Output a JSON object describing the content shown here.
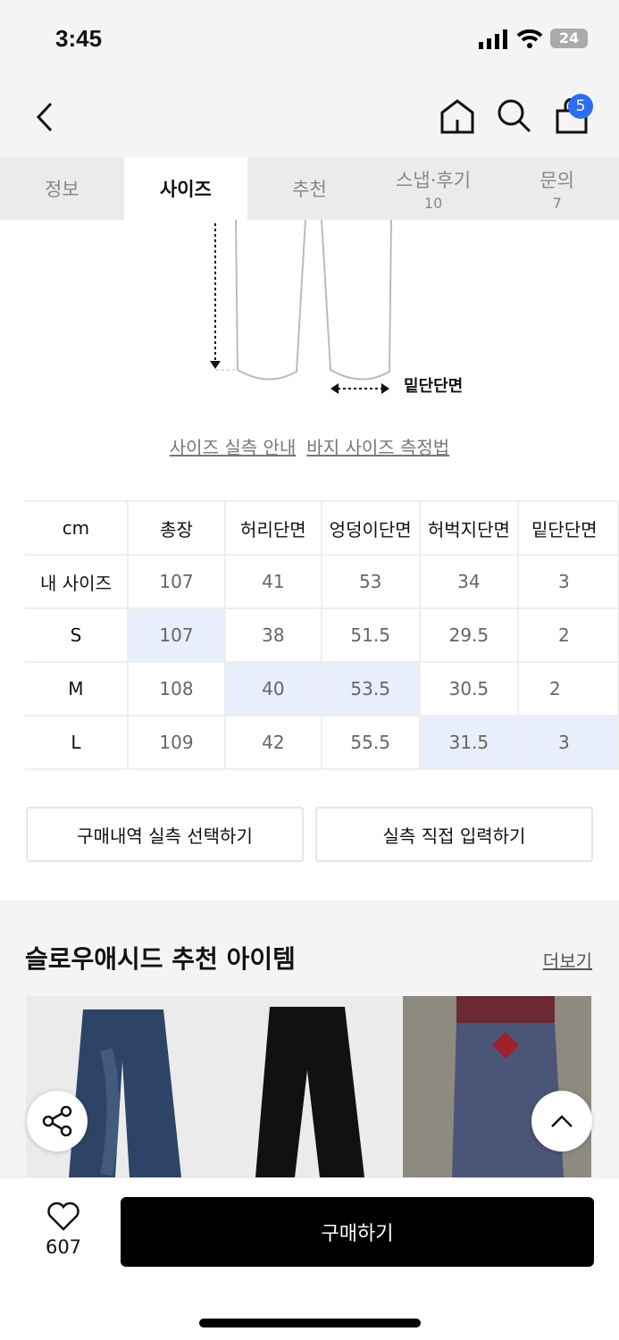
{
  "status": {
    "time": "3:45",
    "battery": "24"
  },
  "nav": {
    "cart_badge": "5",
    "accent": "#2f6cf6"
  },
  "tabs": [
    {
      "label": "정보",
      "count": ""
    },
    {
      "label": "사이즈",
      "count": ""
    },
    {
      "label": "추천",
      "count": ""
    },
    {
      "label": "스냅·후기",
      "count": "10"
    },
    {
      "label": "문의",
      "count": "7"
    }
  ],
  "diagram": {
    "hem_label": "밑단단면"
  },
  "links": {
    "guide": "사이즈 실측 안내",
    "howto": "바지 사이즈 측정법"
  },
  "size_table": {
    "headers": [
      "cm",
      "총장",
      "허리단면",
      "엉덩이단면",
      "허벅지단면",
      "밑단단면"
    ],
    "rows": [
      {
        "label": "내 사이즈",
        "values": [
          "107",
          "41",
          "53",
          "34",
          "3"
        ]
      },
      {
        "label": "S",
        "values": [
          "107",
          "38",
          "51.5",
          "29.5",
          "2"
        ]
      },
      {
        "label": "M",
        "values": [
          "108",
          "40",
          "53.5",
          "30.5",
          "2"
        ]
      },
      {
        "label": "L",
        "values": [
          "109",
          "42",
          "55.5",
          "31.5",
          "3"
        ]
      }
    ],
    "highlight_color": "#e8eefb"
  },
  "actions": {
    "purchase_history": "구매내역 실측 선택하기",
    "direct_input": "실측 직접 입력하기"
  },
  "recommend": {
    "title": "슬로우애시드 추천 아이템",
    "more": "더보기"
  },
  "bottom": {
    "likes": "607",
    "buy": "구매하기"
  }
}
